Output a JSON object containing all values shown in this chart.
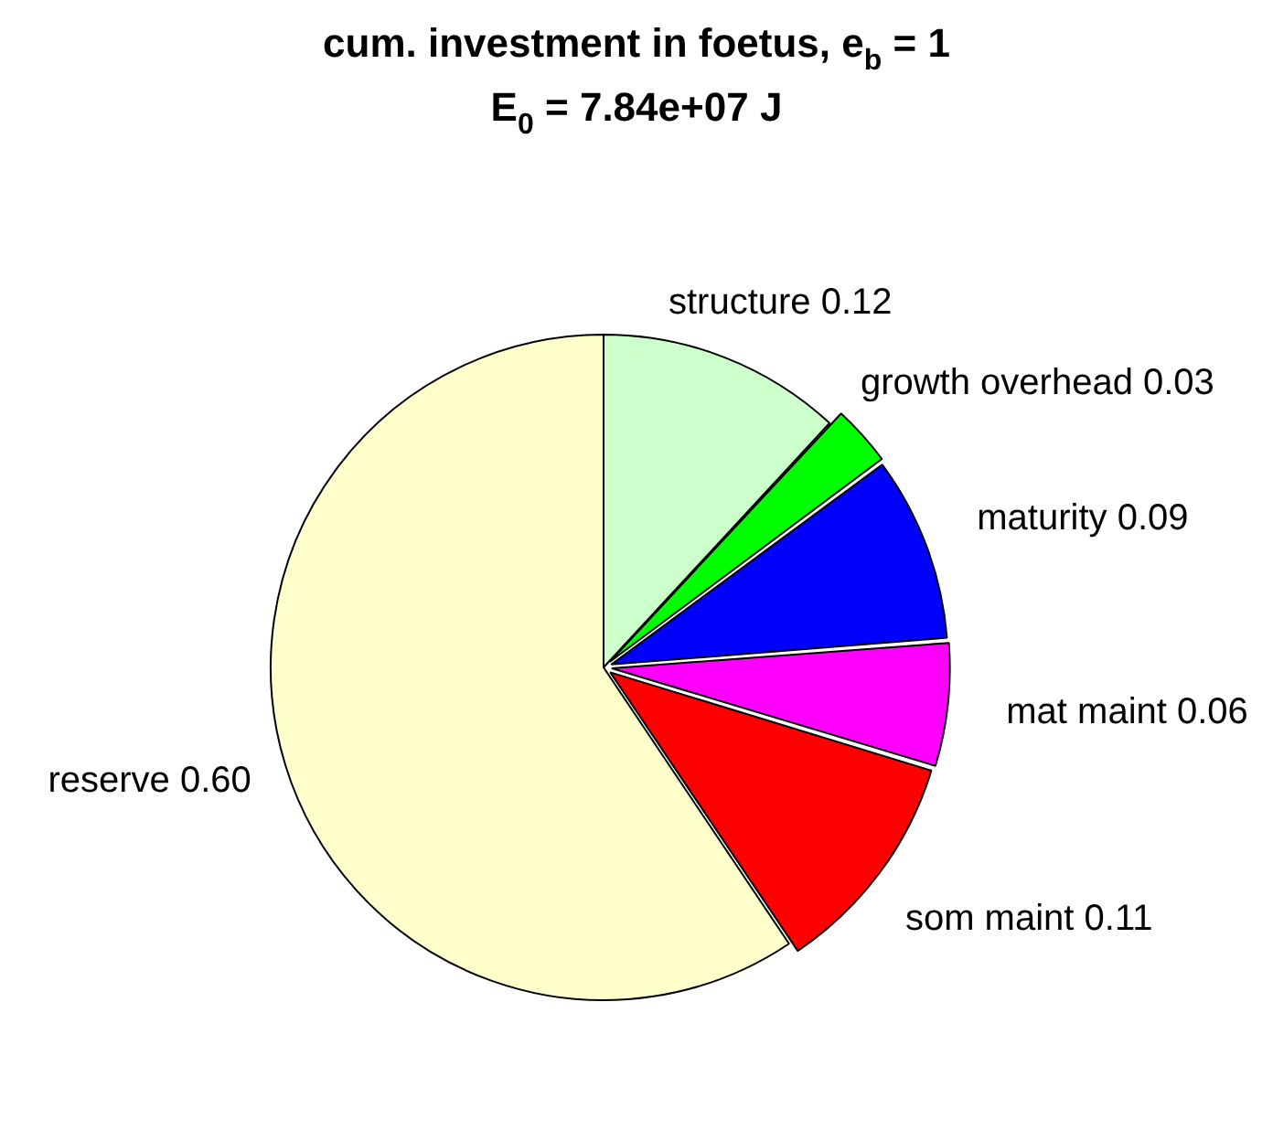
{
  "chart_data": {
    "type": "pie",
    "title": "cum. investment in foetus, e$_{b}$ = 1",
    "subtitle": "E$_{0}$ = 7.84e+07 J",
    "categories": [
      "structure",
      "growth overhead",
      "maturity",
      "mat maint",
      "som maint",
      "reserve"
    ],
    "values": [
      0.12,
      0.03,
      0.09,
      0.06,
      0.11,
      0.6
    ],
    "value_labels": [
      "0.12",
      "0.03",
      "0.09",
      "0.06",
      "0.11",
      "0.60"
    ],
    "colors": [
      "#ccffcc",
      "#00ff00",
      "#0000ff",
      "#ff00ff",
      "#ff0000",
      "#ffffcc"
    ]
  }
}
